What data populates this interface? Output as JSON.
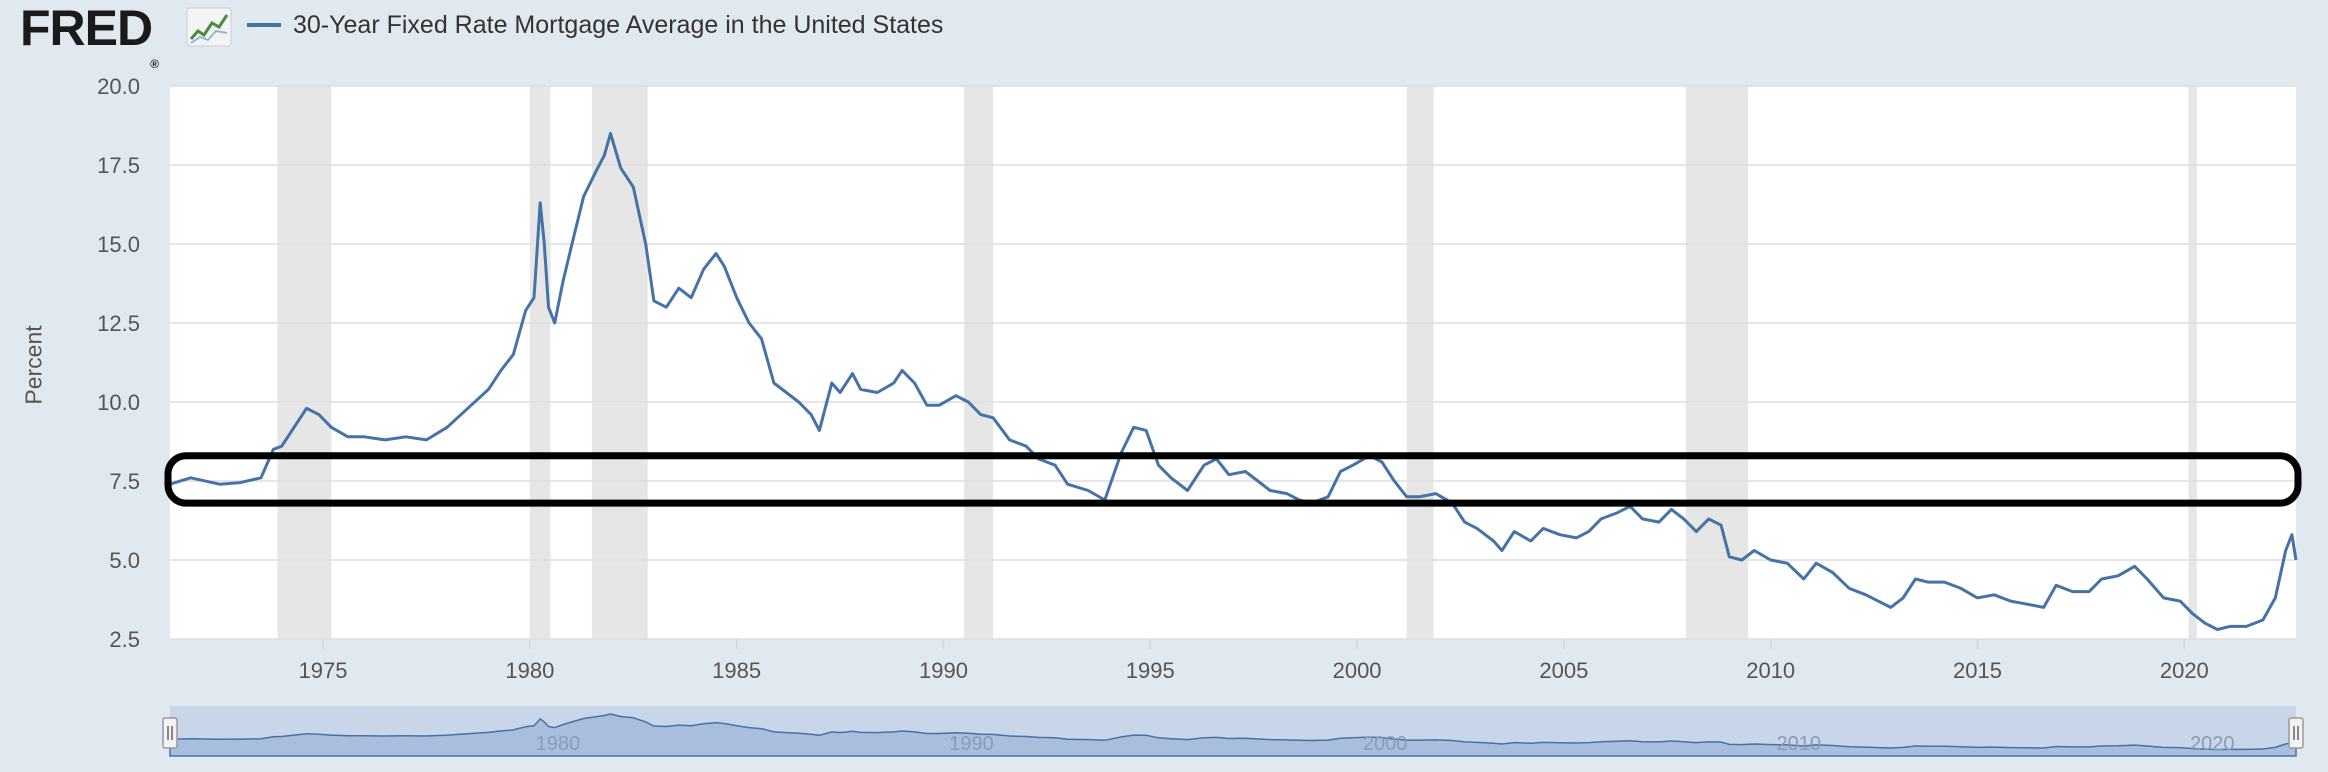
{
  "header": {
    "logo_text": "FRED",
    "logo_mark": "®",
    "logo_icon": "line-chart-icon",
    "legend_label": "30-Year Fixed Rate Mortgage Average in the United States"
  },
  "colors": {
    "series": "#4572a7",
    "recession": "#e6e6e6",
    "grid": "#dddddd",
    "background": "#e1e9f0",
    "plot": "#ffffff",
    "annotation": "#000000",
    "navigator_fill": "#a9bedd",
    "navigator_bg": "#c9d5e8"
  },
  "chart_data": {
    "type": "line",
    "title": "30-Year Fixed Rate Mortgage Average in the United States",
    "xlabel": "",
    "ylabel": "Percent",
    "xlim": [
      1971.3,
      2022.7
    ],
    "ylim": [
      2.5,
      20.0
    ],
    "yticks": [
      2.5,
      5.0,
      7.5,
      10.0,
      12.5,
      15.0,
      17.5,
      20.0
    ],
    "ytick_labels": [
      "2.5",
      "5.0",
      "7.5",
      "10.0",
      "12.5",
      "15.0",
      "17.5",
      "20.0"
    ],
    "xticks": [
      1975,
      1980,
      1985,
      1990,
      1995,
      2000,
      2005,
      2010,
      2015,
      2020
    ],
    "xtick_labels": [
      "1975",
      "1980",
      "1985",
      "1990",
      "1995",
      "2000",
      "2005",
      "2010",
      "2015",
      "2020"
    ],
    "grid": true,
    "recessions": [
      [
        1973.9,
        1975.2
      ],
      [
        1980.0,
        1980.5
      ],
      [
        1981.5,
        1982.85
      ],
      [
        1990.5,
        1991.2
      ],
      [
        2001.2,
        2001.85
      ],
      [
        2007.95,
        2009.45
      ],
      [
        2020.1,
        2020.3
      ]
    ],
    "series": [
      {
        "name": "30-Year Fixed Rate Mortgage Average in the United States",
        "x": [
          1971.3,
          1971.8,
          1972.5,
          1973.0,
          1973.5,
          1973.8,
          1974.0,
          1974.3,
          1974.6,
          1974.9,
          1975.2,
          1975.6,
          1976.0,
          1976.5,
          1977.0,
          1977.5,
          1978.0,
          1978.5,
          1979.0,
          1979.3,
          1979.6,
          1979.9,
          1980.1,
          1980.25,
          1980.35,
          1980.45,
          1980.6,
          1980.8,
          1981.0,
          1981.3,
          1981.6,
          1981.8,
          1981.95,
          1982.2,
          1982.5,
          1982.8,
          1983.0,
          1983.3,
          1983.6,
          1983.9,
          1984.2,
          1984.5,
          1984.7,
          1985.0,
          1985.3,
          1985.6,
          1985.9,
          1986.2,
          1986.5,
          1986.8,
          1987.0,
          1987.3,
          1987.5,
          1987.8,
          1988.0,
          1988.4,
          1988.8,
          1989.0,
          1989.3,
          1989.6,
          1989.9,
          1990.3,
          1990.6,
          1990.9,
          1991.2,
          1991.6,
          1992.0,
          1992.3,
          1992.7,
          1993.0,
          1993.5,
          1993.9,
          1994.3,
          1994.6,
          1994.9,
          1995.2,
          1995.5,
          1995.9,
          1996.3,
          1996.6,
          1996.9,
          1997.3,
          1997.6,
          1997.9,
          1998.3,
          1998.6,
          1998.9,
          1999.3,
          1999.6,
          1999.9,
          2000.3,
          2000.6,
          2000.9,
          2001.2,
          2001.5,
          2001.9,
          2002.3,
          2002.6,
          2002.9,
          2003.3,
          2003.5,
          2003.8,
          2004.2,
          2004.5,
          2004.9,
          2005.3,
          2005.6,
          2005.9,
          2006.3,
          2006.6,
          2006.9,
          2007.3,
          2007.6,
          2007.9,
          2008.2,
          2008.5,
          2008.8,
          2009.0,
          2009.3,
          2009.6,
          2010.0,
          2010.4,
          2010.8,
          2011.1,
          2011.5,
          2011.9,
          2012.3,
          2012.6,
          2012.9,
          2013.2,
          2013.5,
          2013.8,
          2014.2,
          2014.6,
          2015.0,
          2015.4,
          2015.8,
          2016.2,
          2016.6,
          2016.9,
          2017.3,
          2017.7,
          2018.0,
          2018.4,
          2018.8,
          2019.1,
          2019.5,
          2019.9,
          2020.2,
          2020.5,
          2020.8,
          2021.1,
          2021.5,
          2021.9,
          2022.2,
          2022.45,
          2022.6,
          2022.7
        ],
        "values": [
          7.4,
          7.6,
          7.4,
          7.45,
          7.6,
          8.5,
          8.6,
          9.2,
          9.8,
          9.6,
          9.2,
          8.9,
          8.9,
          8.8,
          8.9,
          8.8,
          9.2,
          9.8,
          10.4,
          11.0,
          11.5,
          12.9,
          13.3,
          16.3,
          15.0,
          13.0,
          12.5,
          13.8,
          14.9,
          16.5,
          17.3,
          17.8,
          18.5,
          17.4,
          16.8,
          15.0,
          13.2,
          13.0,
          13.6,
          13.3,
          14.2,
          14.7,
          14.3,
          13.3,
          12.5,
          12.0,
          10.6,
          10.3,
          10.0,
          9.6,
          9.1,
          10.6,
          10.3,
          10.9,
          10.4,
          10.3,
          10.6,
          11.0,
          10.6,
          9.9,
          9.9,
          10.2,
          10.0,
          9.6,
          9.5,
          8.8,
          8.6,
          8.2,
          8.0,
          7.4,
          7.2,
          6.9,
          8.4,
          9.2,
          9.1,
          8.0,
          7.6,
          7.2,
          8.0,
          8.2,
          7.7,
          7.8,
          7.5,
          7.2,
          7.1,
          6.9,
          6.8,
          7.0,
          7.8,
          8.0,
          8.3,
          8.1,
          7.5,
          7.0,
          7.0,
          7.1,
          6.8,
          6.2,
          6.0,
          5.6,
          5.3,
          5.9,
          5.6,
          6.0,
          5.8,
          5.7,
          5.9,
          6.3,
          6.5,
          6.7,
          6.3,
          6.2,
          6.6,
          6.3,
          5.9,
          6.3,
          6.1,
          5.1,
          5.0,
          5.3,
          5.0,
          4.9,
          4.4,
          4.9,
          4.6,
          4.1,
          3.9,
          3.7,
          3.5,
          3.8,
          4.4,
          4.3,
          4.3,
          4.1,
          3.8,
          3.9,
          3.7,
          3.6,
          3.5,
          4.2,
          4.0,
          4.0,
          4.4,
          4.5,
          4.8,
          4.4,
          3.8,
          3.7,
          3.3,
          3.0,
          2.8,
          2.9,
          2.9,
          3.1,
          3.8,
          5.3,
          5.8,
          5.0
        ]
      }
    ]
  },
  "navigator": {
    "tick_labels": [
      "1980",
      "1990",
      "2000",
      "2010",
      "2020"
    ],
    "handle_left": "||",
    "handle_right": "||"
  },
  "annotation": {
    "type": "rounded-rectangle highlight",
    "y_range": [
      6.8,
      8.3
    ]
  }
}
